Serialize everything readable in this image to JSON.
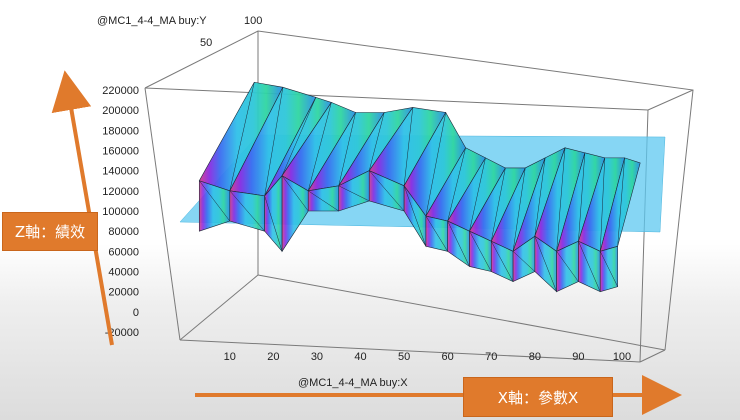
{
  "chart_data": {
    "type": "surface3d",
    "x_axis_label": "@MC1_4-4_MA buy:X",
    "y_axis_label": "@MC1_4-4_MA buy:Y",
    "x_ticks": [
      10,
      20,
      30,
      40,
      50,
      60,
      70,
      80,
      90,
      100
    ],
    "y_ticks": [
      50,
      100
    ],
    "z_ticks": [
      220000,
      200000,
      180000,
      160000,
      140000,
      120000,
      100000,
      80000,
      60000,
      40000,
      20000,
      0,
      -20000
    ],
    "x_range": [
      0,
      100
    ],
    "z_range": [
      -20000,
      220000
    ],
    "reference_plane_z": 100000,
    "x": [
      3,
      10,
      18,
      22,
      28,
      35,
      42,
      50,
      55,
      60,
      65,
      70,
      75,
      80,
      85,
      90,
      95,
      99
    ],
    "z_front": [
      130000,
      120000,
      115000,
      135000,
      120000,
      125000,
      140000,
      125000,
      95000,
      90000,
      80000,
      70000,
      60000,
      75000,
      60000,
      70000,
      60000,
      65000
    ],
    "z_back": [
      215000,
      210000,
      200000,
      195000,
      185000,
      185000,
      190000,
      185000,
      150000,
      140000,
      130000,
      130000,
      140000,
      150000,
      145000,
      140000,
      140000,
      135000
    ],
    "z_low": [
      80000,
      90000,
      80000,
      60000,
      100000,
      100000,
      110000,
      100000,
      65000,
      60000,
      45000,
      40000,
      30000,
      40000,
      20000,
      30000,
      20000,
      25000
    ]
  },
  "callouts": {
    "z_label": "Z軸：績效",
    "x_label": "X軸：參數X"
  },
  "colors": {
    "arrow": "#e07a2c",
    "plane": "#5ec8f0"
  }
}
